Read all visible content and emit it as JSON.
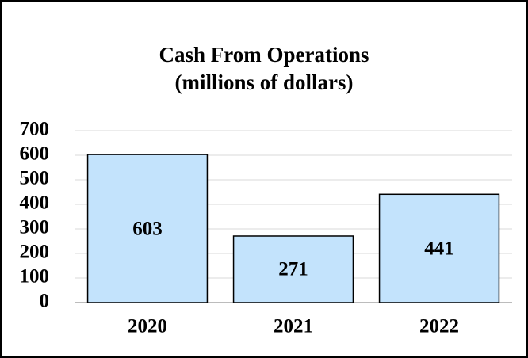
{
  "chart_data": {
    "type": "bar",
    "title": "Cash From Operations",
    "subtitle": "(millions of dollars)",
    "categories": [
      "2020",
      "2021",
      "2022"
    ],
    "values": [
      603,
      271,
      441
    ],
    "color": "#c3e3fc",
    "ylim": [
      0,
      700
    ],
    "yticks": [
      0,
      100,
      200,
      300,
      400,
      500,
      600,
      700
    ],
    "grid": true
  }
}
